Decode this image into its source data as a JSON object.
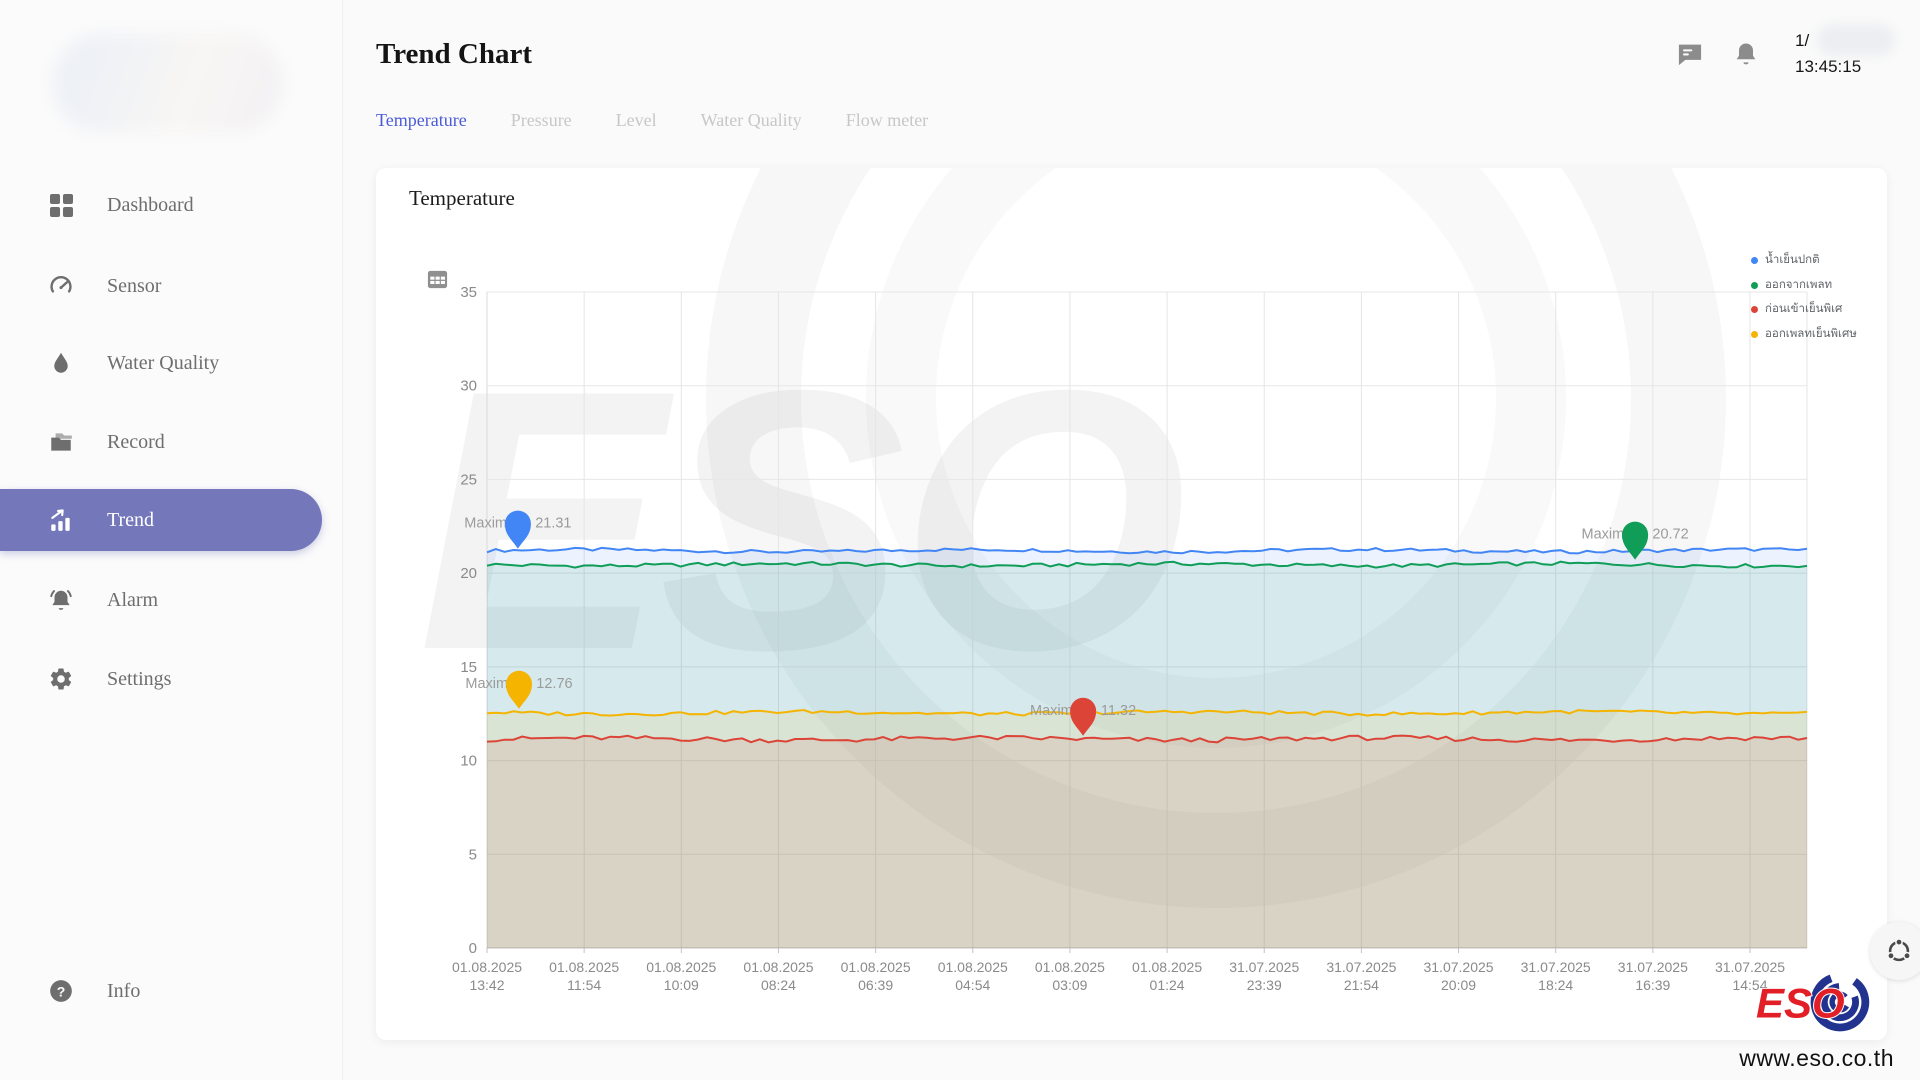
{
  "topbar": {
    "date_partial": "1/",
    "time": "13:45:15"
  },
  "header": {
    "title": "Trend Chart",
    "tabs": [
      {
        "label": "Temperature",
        "active": true
      },
      {
        "label": "Pressure",
        "active": false
      },
      {
        "label": "Level",
        "active": false
      },
      {
        "label": "Water Quality",
        "active": false
      },
      {
        "label": "Flow meter",
        "active": false
      }
    ]
  },
  "sidebar": {
    "items": [
      {
        "label": "Dashboard",
        "icon": "dashboard-grid-icon"
      },
      {
        "label": "Sensor",
        "icon": "gauge-icon"
      },
      {
        "label": "Water Quality",
        "icon": "droplet-icon"
      },
      {
        "label": "Record",
        "icon": "folder-icon"
      },
      {
        "label": "Trend",
        "icon": "trend-chart-icon",
        "active": true
      },
      {
        "label": "Alarm",
        "icon": "alarm-bell-icon"
      },
      {
        "label": "Settings",
        "icon": "gear-icon"
      }
    ],
    "info_label": "Info"
  },
  "chart_card": {
    "title": "Temperature"
  },
  "chart_data": {
    "type": "line",
    "title": "Temperature",
    "ylim": [
      0,
      35
    ],
    "yticks": [
      0,
      5,
      10,
      15,
      20,
      25,
      30,
      35
    ],
    "grid": true,
    "legend_position": "top-right",
    "x_labels": [
      [
        "01.08.2025",
        "13:42"
      ],
      [
        "01.08.2025",
        "11:54"
      ],
      [
        "01.08.2025",
        "10:09"
      ],
      [
        "01.08.2025",
        "08:24"
      ],
      [
        "01.08.2025",
        "06:39"
      ],
      [
        "01.08.2025",
        "04:54"
      ],
      [
        "01.08.2025",
        "03:09"
      ],
      [
        "01.08.2025",
        "01:24"
      ],
      [
        "31.07.2025",
        "23:39"
      ],
      [
        "31.07.2025",
        "21:54"
      ],
      [
        "31.07.2025",
        "20:09"
      ],
      [
        "31.07.2025",
        "18:24"
      ],
      [
        "31.07.2025",
        "16:39"
      ],
      [
        "31.07.2025",
        "14:54"
      ]
    ],
    "series": [
      {
        "name": "น้ำเย็นปกติ",
        "color": "#4285f4",
        "avg": 21.2,
        "jitter": 0.09,
        "max": {
          "value": 21.31,
          "label": "Maximum: 21.31",
          "x_frac": 0.0245
        }
      },
      {
        "name": "ออกจากเพลท",
        "color": "#0f9d58",
        "avg": 20.45,
        "jitter": 0.1,
        "max": {
          "value": 20.72,
          "label": "Maximum: 20.72",
          "x_frac": 0.909
        }
      },
      {
        "name": "ก่อนเข้าเย็นพิเศ",
        "color": "#db4437",
        "avg": 11.15,
        "jitter": 0.13,
        "max": {
          "value": 11.32,
          "label": "Maximum: 11.32",
          "x_frac": 0.472
        }
      },
      {
        "name": "ออกเพลทเย็นพิเศษ",
        "color": "#f4b400",
        "avg": 12.55,
        "jitter": 0.1,
        "max": {
          "value": 12.76,
          "label": "Maximum: 12.76",
          "x_frac": 0.0253
        }
      }
    ]
  },
  "watermark": {
    "text": "ESO"
  },
  "footer": {
    "brand_text": "ESO",
    "url": "www.eso.co.th"
  }
}
